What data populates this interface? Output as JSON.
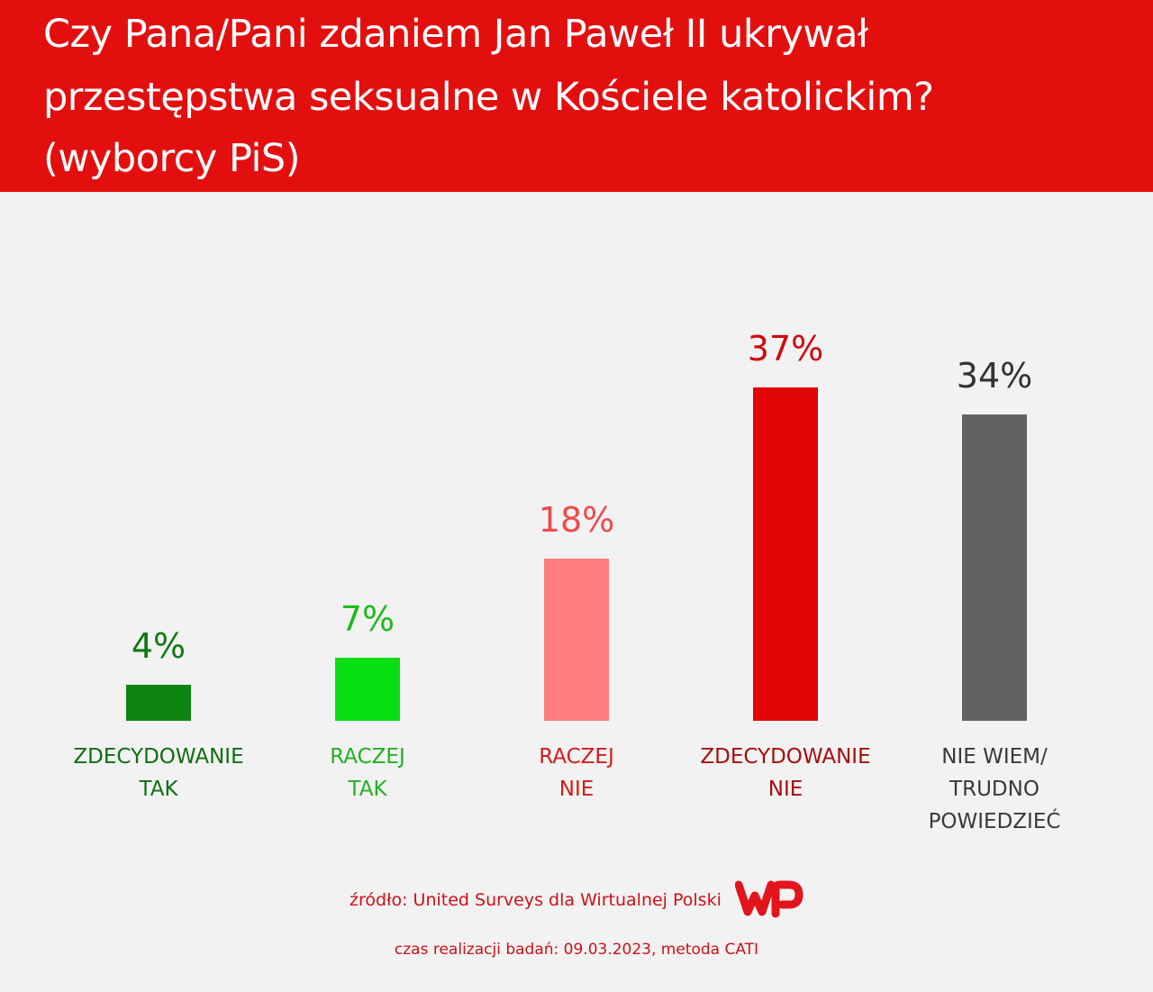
{
  "header": {
    "title_lines": [
      "Czy Pana/Pani zdaniem Jan Paweł II ukrywał",
      "przestępstwa seksualne w Kościele katolickim?",
      "(wyborcy PiS)"
    ]
  },
  "chart_data": {
    "type": "bar",
    "title": "Czy Pana/Pani zdaniem Jan Paweł II ukrywał przestępstwa seksualne w Kościele katolickim? (wyborcy PiS)",
    "categories": [
      [
        "ZDECYDOWANIE",
        "TAK"
      ],
      [
        "RACZEJ",
        "TAK"
      ],
      [
        "RACZEJ",
        "NIE"
      ],
      [
        "ZDECYDOWANIE",
        "NIE"
      ],
      [
        "NIE WIEM/",
        "TRUDNO",
        "POWIEDZIEĆ"
      ]
    ],
    "values": [
      4,
      7,
      18,
      37,
      34
    ],
    "value_labels": [
      "4%",
      "7%",
      "18%",
      "37%",
      "34%"
    ],
    "unit": "%",
    "bar_colors": [
      "#0e8512",
      "#08df12",
      "#ff7c7c",
      "#e30606",
      "#626262"
    ],
    "value_label_colors": [
      "#0e7a12",
      "#1fba1f",
      "#f04a4a",
      "#cf0a0a",
      "#333333"
    ],
    "category_label_colors": [
      "#0f6e12",
      "#22b022",
      "#d71a1a",
      "#a80d0d",
      "#3a3a3a"
    ],
    "ylim": [
      0,
      37
    ],
    "grid": false,
    "legend": "none"
  },
  "footer": {
    "source": "źródło: United Surveys dla Wirtualnej Polski",
    "logo": "wp-logo",
    "date_method": "czas realizacji badań: 09.03.2023, metoda CATI"
  },
  "colors": {
    "header_bg": "#e30f0f",
    "page_bg": "#f2f2f2",
    "footer_text": "#cf1018"
  }
}
